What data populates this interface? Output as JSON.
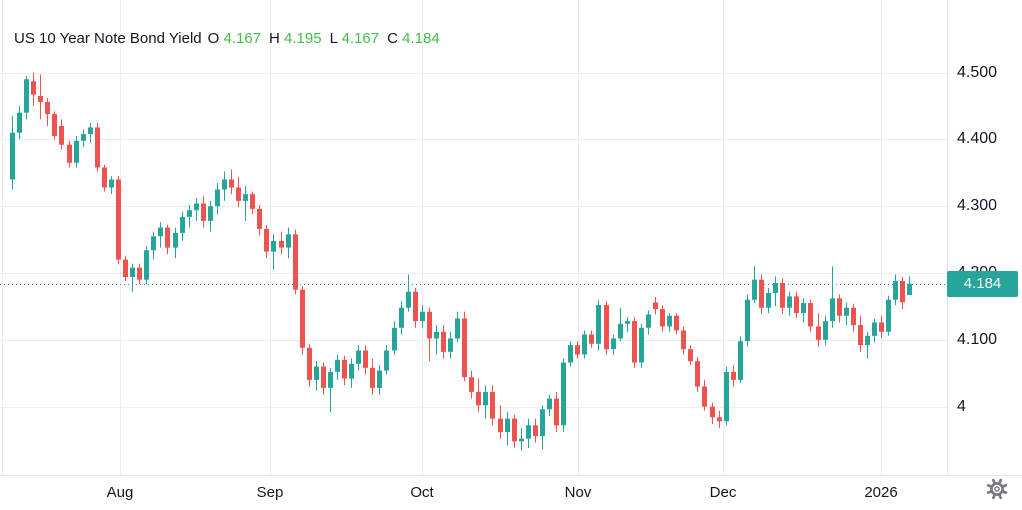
{
  "legend": {
    "title": "US 10 Year Note Bond Yield",
    "ohlc": [
      {
        "label": "O",
        "value": "4.167"
      },
      {
        "label": "H",
        "value": "4.195"
      },
      {
        "label": "L",
        "value": "4.167"
      },
      {
        "label": "C",
        "value": "4.184"
      }
    ]
  },
  "price_axis": {
    "last_price_label": "4.184"
  },
  "colors": {
    "up": "#26a69a",
    "down": "#ef5350",
    "ohlc_value_green": "#43be4a",
    "text": "#131722",
    "grid": "#eeeef0",
    "axis_border": "#e0e3eb",
    "last_price_line": "#26a69a",
    "badge_bg": "#26a69a",
    "icon": "#76787f",
    "background": "#ffffff"
  },
  "chart_data": {
    "type": "candlestick",
    "title": "US 10 Year Note Bond Yield",
    "legend_ohlc": {
      "open": 4.167,
      "high": 4.195,
      "low": 4.167,
      "close": 4.184
    },
    "last_price": 4.184,
    "y_axis": {
      "ticks": [
        {
          "label": "4.500",
          "value": 4.5
        },
        {
          "label": "4.400",
          "value": 4.4
        },
        {
          "label": "4.300",
          "value": 4.3
        },
        {
          "label": "4.200",
          "value": 4.2
        },
        {
          "label": "4.100",
          "value": 4.1
        },
        {
          "label": "4",
          "value": 4.0
        }
      ],
      "range": [
        3.9,
        4.61
      ],
      "grid": true
    },
    "x_axis": {
      "ticks": [
        {
          "label": "Aug",
          "index": 15.3
        },
        {
          "label": "Sep",
          "index": 36.5
        },
        {
          "label": "Oct",
          "index": 58
        },
        {
          "label": "Nov",
          "index": 80.1
        },
        {
          "label": "Dec",
          "index": 100.6
        },
        {
          "label": "2026",
          "index": 123
        }
      ],
      "grid": true
    },
    "candles": [
      [
        4.34,
        4.435,
        4.325,
        4.41
      ],
      [
        4.41,
        4.45,
        4.4,
        4.44
      ],
      [
        4.44,
        4.495,
        4.43,
        4.49
      ],
      [
        4.487,
        4.5,
        4.45,
        4.467
      ],
      [
        4.465,
        4.497,
        4.43,
        4.456
      ],
      [
        4.456,
        4.462,
        4.42,
        4.438
      ],
      [
        4.438,
        4.442,
        4.4,
        4.405
      ],
      [
        4.42,
        4.43,
        4.385,
        4.392
      ],
      [
        4.392,
        4.398,
        4.358,
        4.365
      ],
      [
        4.365,
        4.405,
        4.358,
        4.398
      ],
      [
        4.398,
        4.415,
        4.388,
        4.408
      ],
      [
        4.408,
        4.425,
        4.395,
        4.418
      ],
      [
        4.418,
        4.425,
        4.352,
        4.358
      ],
      [
        4.358,
        4.362,
        4.322,
        4.328
      ],
      [
        4.328,
        4.345,
        4.318,
        4.34
      ],
      [
        4.34,
        4.345,
        4.213,
        4.22
      ],
      [
        4.22,
        4.226,
        4.188,
        4.194
      ],
      [
        4.194,
        4.214,
        4.172,
        4.208
      ],
      [
        4.208,
        4.214,
        4.183,
        4.19
      ],
      [
        4.19,
        4.24,
        4.183,
        4.234
      ],
      [
        4.234,
        4.262,
        4.22,
        4.255
      ],
      [
        4.255,
        4.276,
        4.238,
        4.268
      ],
      [
        4.268,
        4.272,
        4.228,
        4.238
      ],
      [
        4.238,
        4.268,
        4.222,
        4.26
      ],
      [
        4.26,
        4.292,
        4.248,
        4.284
      ],
      [
        4.284,
        4.302,
        4.268,
        4.294
      ],
      [
        4.294,
        4.312,
        4.278,
        4.304
      ],
      [
        4.304,
        4.315,
        4.268,
        4.278
      ],
      [
        4.278,
        4.308,
        4.262,
        4.3
      ],
      [
        4.3,
        4.335,
        4.288,
        4.325
      ],
      [
        4.325,
        4.352,
        4.308,
        4.34
      ],
      [
        4.34,
        4.355,
        4.318,
        4.328
      ],
      [
        4.328,
        4.344,
        4.298,
        4.308
      ],
      [
        4.308,
        4.33,
        4.278,
        4.318
      ],
      [
        4.318,
        4.322,
        4.288,
        4.296
      ],
      [
        4.296,
        4.302,
        4.256,
        4.266
      ],
      [
        4.266,
        4.272,
        4.222,
        4.232
      ],
      [
        4.232,
        4.258,
        4.205,
        4.248
      ],
      [
        4.248,
        4.262,
        4.228,
        4.238
      ],
      [
        4.238,
        4.268,
        4.222,
        4.258
      ],
      [
        4.258,
        4.265,
        4.168,
        4.175
      ],
      [
        4.175,
        4.18,
        4.078,
        4.088
      ],
      [
        4.088,
        4.094,
        4.03,
        4.04
      ],
      [
        4.04,
        4.068,
        4.024,
        4.06
      ],
      [
        4.06,
        4.066,
        4.018,
        4.028
      ],
      [
        4.028,
        4.058,
        3.992,
        4.052
      ],
      [
        4.052,
        4.078,
        4.04,
        4.07
      ],
      [
        4.07,
        4.076,
        4.032,
        4.042
      ],
      [
        4.042,
        4.072,
        4.028,
        4.064
      ],
      [
        4.064,
        4.092,
        4.054,
        4.084
      ],
      [
        4.084,
        4.092,
        4.048,
        4.058
      ],
      [
        4.058,
        4.072,
        4.018,
        4.028
      ],
      [
        4.028,
        4.062,
        4.018,
        4.054
      ],
      [
        4.054,
        4.092,
        4.048,
        4.084
      ],
      [
        4.084,
        4.128,
        4.078,
        4.118
      ],
      [
        4.118,
        4.158,
        4.108,
        4.148
      ],
      [
        4.148,
        4.198,
        4.142,
        4.172
      ],
      [
        4.172,
        4.178,
        4.118,
        4.128
      ],
      [
        4.128,
        4.152,
        4.118,
        4.142
      ],
      [
        4.142,
        4.148,
        4.068,
        4.102
      ],
      [
        4.102,
        4.122,
        4.078,
        4.112
      ],
      [
        4.112,
        4.122,
        4.072,
        4.082
      ],
      [
        4.082,
        4.112,
        4.072,
        4.102
      ],
      [
        4.102,
        4.142,
        4.096,
        4.132
      ],
      [
        4.132,
        4.142,
        4.038,
        4.044
      ],
      [
        4.044,
        4.054,
        4.012,
        4.022
      ],
      [
        4.022,
        4.042,
        3.992,
        4.002
      ],
      [
        4.002,
        4.032,
        3.982,
        4.022
      ],
      [
        4.022,
        4.032,
        3.972,
        3.982
      ],
      [
        3.982,
        4.002,
        3.952,
        3.962
      ],
      [
        3.962,
        3.992,
        3.942,
        3.982
      ],
      [
        3.982,
        3.988,
        3.938,
        3.948
      ],
      [
        3.948,
        3.968,
        3.934,
        3.952
      ],
      [
        3.952,
        3.982,
        3.938,
        3.972
      ],
      [
        3.972,
        3.982,
        3.946,
        3.956
      ],
      [
        3.956,
        4.002,
        3.936,
        3.996
      ],
      [
        3.996,
        4.018,
        3.986,
        4.012
      ],
      [
        4.012,
        4.022,
        3.962,
        3.972
      ],
      [
        3.972,
        4.072,
        3.962,
        4.066
      ],
      [
        4.066,
        4.098,
        4.06,
        4.092
      ],
      [
        4.092,
        4.098,
        4.072,
        4.078
      ],
      [
        4.078,
        4.114,
        4.072,
        4.108
      ],
      [
        4.108,
        4.114,
        4.088,
        4.094
      ],
      [
        4.094,
        4.16,
        4.084,
        4.152
      ],
      [
        4.152,
        4.158,
        4.078,
        4.086
      ],
      [
        4.086,
        4.108,
        4.078,
        4.102
      ],
      [
        4.102,
        4.148,
        4.098,
        4.124
      ],
      [
        4.124,
        4.134,
        4.112,
        4.128
      ],
      [
        4.128,
        4.134,
        4.058,
        4.066
      ],
      [
        4.066,
        4.124,
        4.058,
        4.118
      ],
      [
        4.118,
        4.144,
        4.108,
        4.138
      ],
      [
        4.156,
        4.164,
        4.138,
        4.146
      ],
      [
        4.146,
        4.152,
        4.112,
        4.12
      ],
      [
        4.12,
        4.14,
        4.112,
        4.136
      ],
      [
        4.136,
        4.14,
        4.108,
        4.114
      ],
      [
        4.114,
        4.12,
        4.078,
        4.086
      ],
      [
        4.086,
        4.092,
        4.062,
        4.068
      ],
      [
        4.068,
        4.074,
        4.022,
        4.03
      ],
      [
        4.03,
        4.04,
        3.994,
        4.0
      ],
      [
        4.0,
        4.006,
        3.974,
        3.984
      ],
      [
        3.984,
        3.994,
        3.968,
        3.978
      ],
      [
        3.978,
        4.06,
        3.972,
        4.052
      ],
      [
        4.052,
        4.062,
        4.03,
        4.04
      ],
      [
        4.04,
        4.105,
        4.035,
        4.098
      ],
      [
        4.098,
        4.168,
        4.09,
        4.16
      ],
      [
        4.16,
        4.21,
        4.155,
        4.19
      ],
      [
        4.19,
        4.198,
        4.138,
        4.148
      ],
      [
        4.148,
        4.178,
        4.14,
        4.17
      ],
      [
        4.17,
        4.195,
        4.15,
        4.185
      ],
      [
        4.185,
        4.192,
        4.138,
        4.148
      ],
      [
        4.148,
        4.172,
        4.136,
        4.165
      ],
      [
        4.165,
        4.172,
        4.132,
        4.14
      ],
      [
        4.14,
        4.162,
        4.126,
        4.155
      ],
      [
        4.155,
        4.16,
        4.112,
        4.12
      ],
      [
        4.12,
        4.14,
        4.09,
        4.1
      ],
      [
        4.1,
        4.136,
        4.092,
        4.128
      ],
      [
        4.128,
        4.21,
        4.118,
        4.162
      ],
      [
        4.162,
        4.168,
        4.126,
        4.136
      ],
      [
        4.136,
        4.156,
        4.122,
        4.148
      ],
      [
        4.148,
        4.154,
        4.112,
        4.122
      ],
      [
        4.122,
        4.136,
        4.082,
        4.092
      ],
      [
        4.092,
        4.112,
        4.072,
        4.106
      ],
      [
        4.106,
        4.132,
        4.096,
        4.126
      ],
      [
        4.126,
        4.136,
        4.102,
        4.112
      ],
      [
        4.112,
        4.166,
        4.106,
        4.16
      ],
      [
        4.16,
        4.198,
        4.152,
        4.188
      ],
      [
        4.188,
        4.194,
        4.146,
        4.156
      ],
      [
        4.167,
        4.195,
        4.167,
        4.184
      ]
    ]
  }
}
